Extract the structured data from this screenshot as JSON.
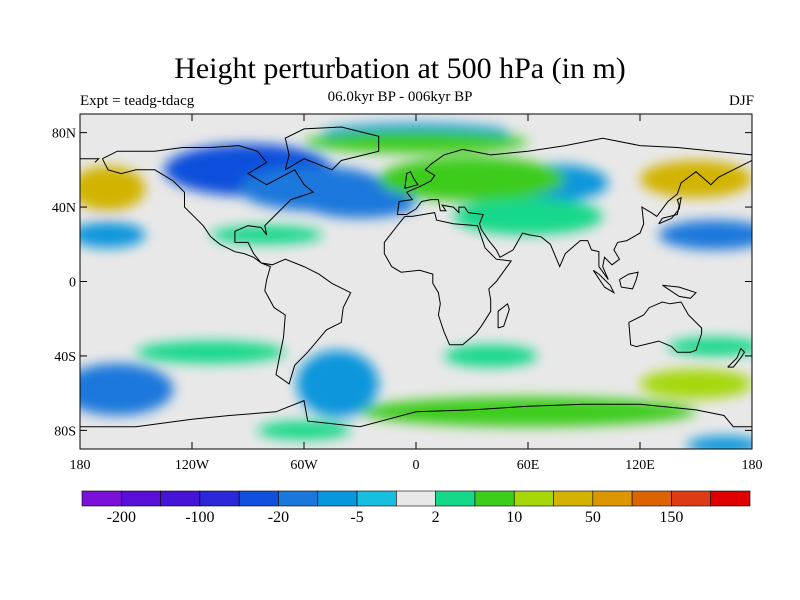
{
  "title": "Height perturbation at 500 hPa (in m)",
  "left_label": "Expt = teadg-tdacg",
  "center_label": "06.0kyr BP - 006kyr BP",
  "right_label": "DJF",
  "map": {
    "projection": "cylindrical-equidistant",
    "lon_range": [
      -180,
      180
    ],
    "lat_range": [
      -90,
      90
    ],
    "land_fill": "none",
    "coastlines": "black"
  },
  "axes": {
    "lat_ticks": [
      {
        "lat": 80,
        "label": "80N"
      },
      {
        "lat": 40,
        "label": "40N"
      },
      {
        "lat": 0,
        "label": "0"
      },
      {
        "lat": -40,
        "label": "40S"
      },
      {
        "lat": -80,
        "label": "80S"
      }
    ],
    "lon_ticks": [
      {
        "lon": -180,
        "label": "180"
      },
      {
        "lon": -120,
        "label": "120W"
      },
      {
        "lon": -60,
        "label": "60W"
      },
      {
        "lon": 0,
        "label": "0"
      },
      {
        "lon": 60,
        "label": "60E"
      },
      {
        "lon": 120,
        "label": "120E"
      },
      {
        "lon": 180,
        "label": "180"
      }
    ]
  },
  "colorbar": {
    "colors": [
      "#7a0fd8",
      "#5a0fd8",
      "#4614d6",
      "#2a28d8",
      "#1050dc",
      "#1a78dc",
      "#0a96dc",
      "#16bee0",
      "#e8e8e8",
      "#16d88a",
      "#3ccc1c",
      "#a6d808",
      "#d2b400",
      "#dc9600",
      "#dc6400",
      "#dc3c14",
      "#e00000"
    ],
    "labels": [
      {
        "after_box": 1,
        "text": "-200"
      },
      {
        "after_box": 3,
        "text": "-100"
      },
      {
        "after_box": 5,
        "text": "-20"
      },
      {
        "after_box": 7,
        "text": "-5"
      },
      {
        "after_box": 9,
        "text": "2"
      },
      {
        "after_box": 11,
        "text": "10"
      },
      {
        "after_box": 13,
        "text": "50"
      },
      {
        "after_box": 15,
        "text": "150"
      }
    ]
  },
  "anomaly_field": [
    {
      "lon": -90,
      "lat": 60,
      "level": 4,
      "spread_lon": 45,
      "spread_lat": 14
    },
    {
      "lon": -55,
      "lat": 50,
      "level": 5,
      "spread_lon": 40,
      "spread_lat": 12
    },
    {
      "lon": -30,
      "lat": 42,
      "level": 5,
      "spread_lon": 30,
      "spread_lat": 8
    },
    {
      "lon": 75,
      "lat": 53,
      "level": 6,
      "spread_lon": 28,
      "spread_lat": 10
    },
    {
      "lon": 0,
      "lat": 80,
      "level": 6,
      "spread_lon": 50,
      "spread_lat": 5
    },
    {
      "lon": 160,
      "lat": 25,
      "level": 5,
      "spread_lon": 30,
      "spread_lat": 8
    },
    {
      "lon": -165,
      "lat": 25,
      "level": 6,
      "spread_lon": 20,
      "spread_lat": 7
    },
    {
      "lon": -160,
      "lat": -58,
      "level": 5,
      "spread_lon": 30,
      "spread_lat": 14
    },
    {
      "lon": -42,
      "lat": -55,
      "level": 6,
      "spread_lon": 22,
      "spread_lat": 18
    },
    {
      "lon": 165,
      "lat": -88,
      "level": 6,
      "spread_lon": 20,
      "spread_lat": 5
    },
    {
      "lon": -165,
      "lat": 50,
      "level": 12,
      "spread_lon": 20,
      "spread_lat": 12
    },
    {
      "lon": 150,
      "lat": 55,
      "level": 12,
      "spread_lon": 30,
      "spread_lat": 10
    },
    {
      "lon": 150,
      "lat": -55,
      "level": 11,
      "spread_lon": 30,
      "spread_lat": 8
    },
    {
      "lon": 30,
      "lat": 55,
      "level": 10,
      "spread_lon": 50,
      "spread_lat": 12
    },
    {
      "lon": 0,
      "lat": 75,
      "level": 10,
      "spread_lon": 60,
      "spread_lat": 6
    },
    {
      "lon": 60,
      "lat": 35,
      "level": 9,
      "spread_lon": 40,
      "spread_lat": 10
    },
    {
      "lon": 60,
      "lat": -70,
      "level": 10,
      "spread_lon": 90,
      "spread_lat": 8
    },
    {
      "lon": -80,
      "lat": 25,
      "level": 9,
      "spread_lon": 30,
      "spread_lat": 5
    },
    {
      "lon": -110,
      "lat": -38,
      "level": 9,
      "spread_lon": 40,
      "spread_lat": 6
    },
    {
      "lon": 40,
      "lat": -40,
      "level": 9,
      "spread_lon": 25,
      "spread_lat": 6
    },
    {
      "lon": 160,
      "lat": -35,
      "level": 9,
      "spread_lon": 25,
      "spread_lat": 5
    },
    {
      "lon": -60,
      "lat": -80,
      "level": 9,
      "spread_lon": 25,
      "spread_lat": 5
    }
  ]
}
